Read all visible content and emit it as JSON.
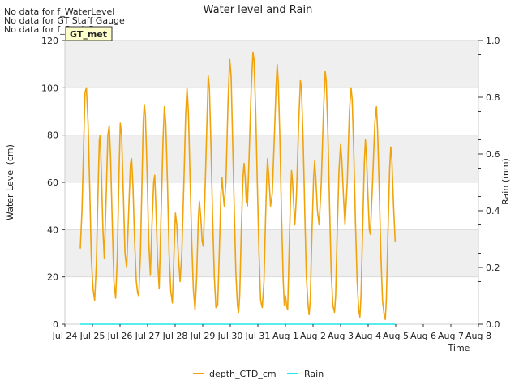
{
  "title": "Water level and Rain",
  "notes": [
    "No data for f_WaterLevel",
    "No data for GT Staff Gauge",
    "No data for f_SonicRng"
  ],
  "badge": "GT_met",
  "colors": {
    "depth": "#f0a30a",
    "rain": "#22e5e5",
    "band": "#efefef",
    "badge_bg": "#ffffcc",
    "badge_text": "#aa0000",
    "grid": "#d9d9d9"
  },
  "chart_data": {
    "type": "line",
    "title": "Water level and Rain",
    "xlabel": "Time",
    "ylabel_left": "Water Level (cm)",
    "ylabel_right": "Rain (mm)",
    "x_ticks": [
      "Jul 24",
      "Jul 25",
      "Jul 26",
      "Jul 27",
      "Jul 28",
      "Jul 29",
      "Jul 30",
      "Jul 31",
      "Aug 1",
      "Aug 2",
      "Aug 3",
      "Aug 4",
      "Aug 5",
      "Aug 6",
      "Aug 7",
      "Aug 8"
    ],
    "xlim_days": [
      0,
      15
    ],
    "ylim_left": [
      0,
      120
    ],
    "yticks_left": [
      "0",
      "20",
      "40",
      "60",
      "80",
      "100",
      "120"
    ],
    "ylim_right": [
      0.0,
      1.0
    ],
    "yticks_right": [
      "0.0",
      "0.2",
      "0.4",
      "0.6",
      "0.8",
      "1.0"
    ],
    "grid": true,
    "legend_position": "bottom-center",
    "series": [
      {
        "name": "depth_CTD_cm",
        "axis": "left",
        "points": [
          [
            0.56,
            32
          ],
          [
            0.62,
            48
          ],
          [
            0.68,
            75
          ],
          [
            0.73,
            98
          ],
          [
            0.78,
            100
          ],
          [
            0.84,
            85
          ],
          [
            0.9,
            58
          ],
          [
            0.96,
            28
          ],
          [
            1.02,
            15
          ],
          [
            1.08,
            10
          ],
          [
            1.14,
            25
          ],
          [
            1.2,
            55
          ],
          [
            1.25,
            78
          ],
          [
            1.28,
            80
          ],
          [
            1.33,
            62
          ],
          [
            1.38,
            40
          ],
          [
            1.43,
            28
          ],
          [
            1.5,
            55
          ],
          [
            1.56,
            80
          ],
          [
            1.61,
            84
          ],
          [
            1.66,
            70
          ],
          [
            1.72,
            42
          ],
          [
            1.78,
            18
          ],
          [
            1.84,
            11
          ],
          [
            1.9,
            28
          ],
          [
            1.96,
            62
          ],
          [
            2.01,
            85
          ],
          [
            2.06,
            80
          ],
          [
            2.12,
            55
          ],
          [
            2.18,
            30
          ],
          [
            2.24,
            24
          ],
          [
            2.32,
            50
          ],
          [
            2.38,
            68
          ],
          [
            2.42,
            70
          ],
          [
            2.47,
            58
          ],
          [
            2.53,
            35
          ],
          [
            2.59,
            18
          ],
          [
            2.64,
            13
          ],
          [
            2.68,
            12
          ],
          [
            2.74,
            30
          ],
          [
            2.8,
            62
          ],
          [
            2.84,
            85
          ],
          [
            2.88,
            93
          ],
          [
            2.92,
            88
          ],
          [
            2.98,
            65
          ],
          [
            3.04,
            35
          ],
          [
            3.1,
            21
          ],
          [
            3.16,
            42
          ],
          [
            3.22,
            60
          ],
          [
            3.26,
            63
          ],
          [
            3.3,
            50
          ],
          [
            3.36,
            28
          ],
          [
            3.42,
            15
          ],
          [
            3.48,
            42
          ],
          [
            3.56,
            78
          ],
          [
            3.61,
            92
          ],
          [
            3.66,
            85
          ],
          [
            3.72,
            60
          ],
          [
            3.78,
            30
          ],
          [
            3.84,
            14
          ],
          [
            3.9,
            9
          ],
          [
            3.96,
            30
          ],
          [
            4.01,
            47
          ],
          [
            4.06,
            42
          ],
          [
            4.12,
            28
          ],
          [
            4.18,
            18
          ],
          [
            4.24,
            30
          ],
          [
            4.32,
            62
          ],
          [
            4.38,
            88
          ],
          [
            4.43,
            100
          ],
          [
            4.48,
            90
          ],
          [
            4.54,
            62
          ],
          [
            4.6,
            35
          ],
          [
            4.66,
            15
          ],
          [
            4.72,
            6
          ],
          [
            4.78,
            20
          ],
          [
            4.84,
            45
          ],
          [
            4.88,
            52
          ],
          [
            4.93,
            45
          ],
          [
            4.98,
            35
          ],
          [
            5.02,
            33
          ],
          [
            5.08,
            55
          ],
          [
            5.16,
            88
          ],
          [
            5.2,
            105
          ],
          [
            5.24,
            100
          ],
          [
            5.3,
            75
          ],
          [
            5.36,
            45
          ],
          [
            5.42,
            20
          ],
          [
            5.48,
            7
          ],
          [
            5.54,
            8
          ],
          [
            5.6,
            30
          ],
          [
            5.66,
            55
          ],
          [
            5.7,
            62
          ],
          [
            5.74,
            55
          ],
          [
            5.78,
            50
          ],
          [
            5.84,
            60
          ],
          [
            5.92,
            95
          ],
          [
            5.98,
            112
          ],
          [
            6.03,
            105
          ],
          [
            6.08,
            80
          ],
          [
            6.14,
            50
          ],
          [
            6.2,
            22
          ],
          [
            6.26,
            8
          ],
          [
            6.3,
            5
          ],
          [
            6.34,
            12
          ],
          [
            6.4,
            40
          ],
          [
            6.46,
            62
          ],
          [
            6.5,
            68
          ],
          [
            6.54,
            62
          ],
          [
            6.58,
            52
          ],
          [
            6.62,
            50
          ],
          [
            6.68,
            70
          ],
          [
            6.76,
            100
          ],
          [
            6.82,
            115
          ],
          [
            6.86,
            112
          ],
          [
            6.92,
            90
          ],
          [
            6.98,
            60
          ],
          [
            7.04,
            30
          ],
          [
            7.1,
            10
          ],
          [
            7.16,
            7
          ],
          [
            7.22,
            18
          ],
          [
            7.28,
            45
          ],
          [
            7.32,
            62
          ],
          [
            7.35,
            70
          ],
          [
            7.4,
            62
          ],
          [
            7.46,
            50
          ],
          [
            7.52,
            55
          ],
          [
            7.6,
            80
          ],
          [
            7.66,
            100
          ],
          [
            7.7,
            110
          ],
          [
            7.74,
            102
          ],
          [
            7.8,
            78
          ],
          [
            7.86,
            45
          ],
          [
            7.92,
            18
          ],
          [
            7.96,
            8
          ],
          [
            8.0,
            12
          ],
          [
            8.04,
            8
          ],
          [
            8.08,
            6
          ],
          [
            8.12,
            25
          ],
          [
            8.18,
            52
          ],
          [
            8.22,
            65
          ],
          [
            8.26,
            60
          ],
          [
            8.3,
            50
          ],
          [
            8.34,
            42
          ],
          [
            8.4,
            55
          ],
          [
            8.48,
            85
          ],
          [
            8.54,
            103
          ],
          [
            8.58,
            100
          ],
          [
            8.64,
            78
          ],
          [
            8.7,
            48
          ],
          [
            8.76,
            20
          ],
          [
            8.82,
            8
          ],
          [
            8.86,
            4
          ],
          [
            8.9,
            10
          ],
          [
            8.96,
            38
          ],
          [
            9.02,
            62
          ],
          [
            9.06,
            69
          ],
          [
            9.1,
            62
          ],
          [
            9.16,
            48
          ],
          [
            9.22,
            42
          ],
          [
            9.3,
            60
          ],
          [
            9.38,
            90
          ],
          [
            9.44,
            107
          ],
          [
            9.48,
            103
          ],
          [
            9.54,
            80
          ],
          [
            9.6,
            50
          ],
          [
            9.66,
            22
          ],
          [
            9.72,
            8
          ],
          [
            9.78,
            5
          ],
          [
            9.82,
            12
          ],
          [
            9.88,
            40
          ],
          [
            9.94,
            65
          ],
          [
            10.0,
            76
          ],
          [
            10.04,
            70
          ],
          [
            10.1,
            55
          ],
          [
            10.16,
            42
          ],
          [
            10.24,
            60
          ],
          [
            10.32,
            90
          ],
          [
            10.38,
            100
          ],
          [
            10.42,
            95
          ],
          [
            10.48,
            72
          ],
          [
            10.54,
            42
          ],
          [
            10.6,
            18
          ],
          [
            10.66,
            6
          ],
          [
            10.7,
            3
          ],
          [
            10.74,
            12
          ],
          [
            10.8,
            40
          ],
          [
            10.86,
            68
          ],
          [
            10.9,
            78
          ],
          [
            10.94,
            70
          ],
          [
            11.0,
            52
          ],
          [
            11.04,
            40
          ],
          [
            11.08,
            38
          ],
          [
            11.16,
            60
          ],
          [
            11.24,
            85
          ],
          [
            11.3,
            92
          ],
          [
            11.34,
            82
          ],
          [
            11.4,
            58
          ],
          [
            11.46,
            30
          ],
          [
            11.52,
            10
          ],
          [
            11.58,
            4
          ],
          [
            11.62,
            2
          ],
          [
            11.66,
            10
          ],
          [
            11.72,
            40
          ],
          [
            11.78,
            66
          ],
          [
            11.82,
            75
          ],
          [
            11.86,
            70
          ],
          [
            11.92,
            50
          ],
          [
            11.98,
            35
          ]
        ]
      },
      {
        "name": "Rain",
        "axis": "right",
        "points": [
          [
            0.56,
            0.0
          ],
          [
            11.98,
            0.0
          ]
        ]
      }
    ]
  }
}
